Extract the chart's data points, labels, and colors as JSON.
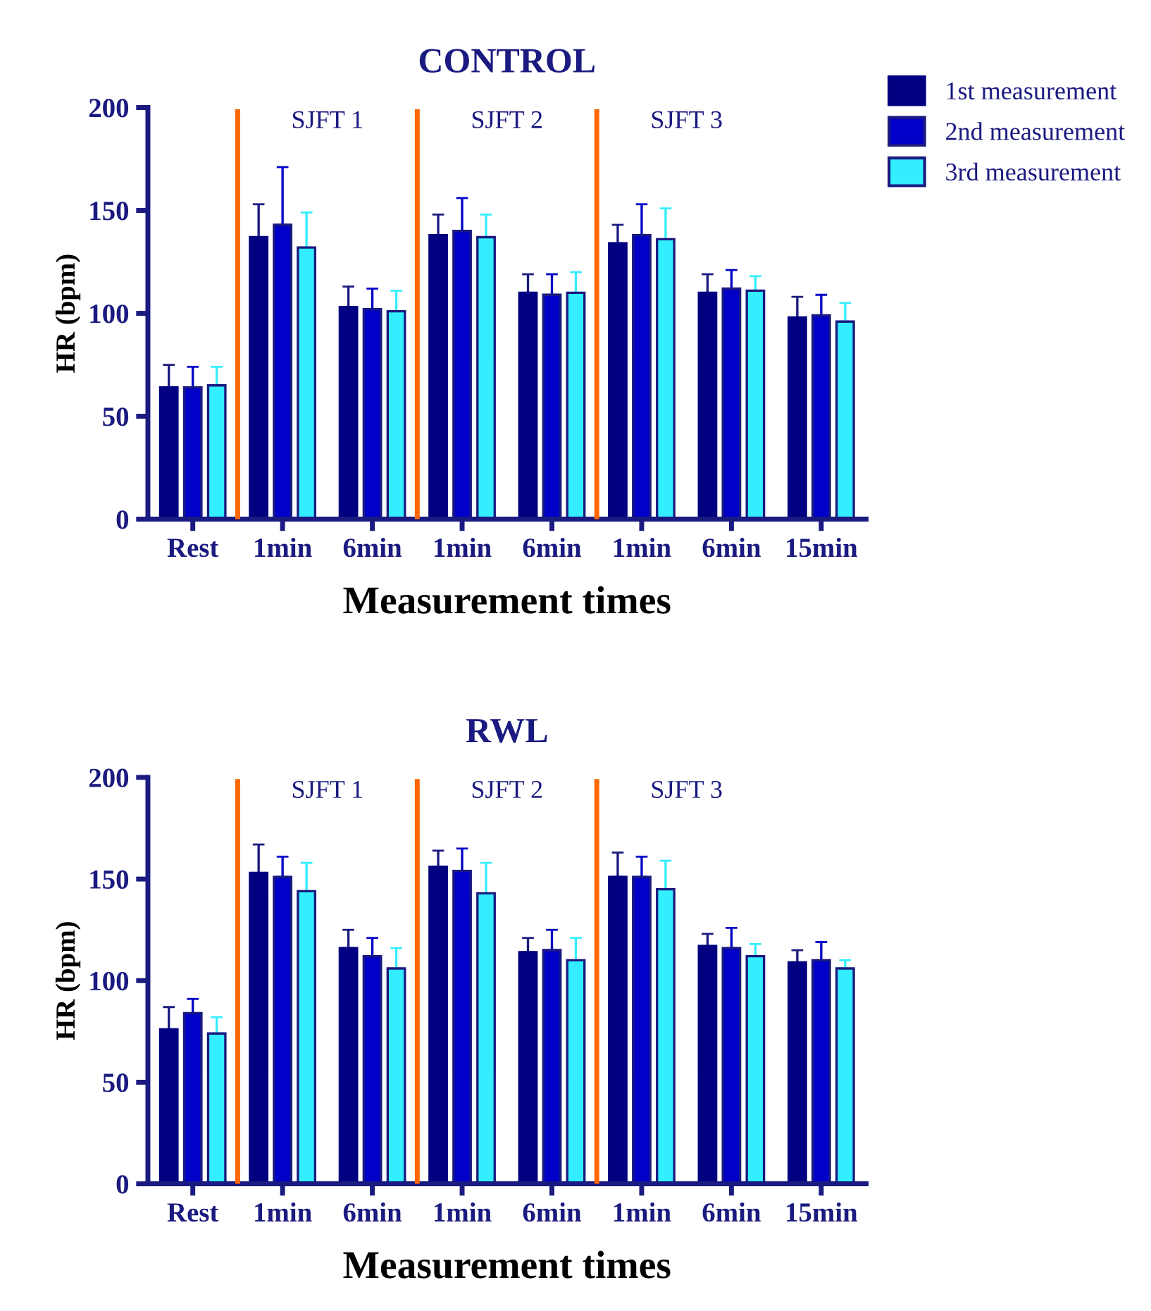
{
  "chart_data": [
    {
      "type": "bar",
      "title": "CONTROL",
      "xlabel": "Measurement times",
      "ylabel": "HR (bpm)",
      "categories": [
        "Rest",
        "1min",
        "6min",
        "1min",
        "6min",
        "1min",
        "6min",
        "15min"
      ],
      "ylim": [
        0,
        200
      ],
      "yticks": [
        0,
        50,
        100,
        150,
        200
      ],
      "grid": false,
      "legend": "top right",
      "series": [
        {
          "name": "1st measurement",
          "color": "#000080",
          "values": [
            64,
            137,
            103,
            138,
            110,
            134,
            110,
            98
          ],
          "errors": [
            [
              64,
              75
            ],
            [
              137,
              153
            ],
            [
              103,
              113
            ],
            [
              138,
              148
            ],
            [
              110,
              119
            ],
            [
              134,
              143
            ],
            [
              110,
              119
            ],
            [
              98,
              108
            ]
          ]
        },
        {
          "name": "2nd measurement",
          "color": "#0000c8",
          "values": [
            64,
            143,
            102,
            140,
            109,
            138,
            112,
            99
          ],
          "errors": [
            [
              64,
              74
            ],
            [
              143,
              171
            ],
            [
              102,
              112
            ],
            [
              140,
              156
            ],
            [
              109,
              119
            ],
            [
              138,
              153
            ],
            [
              112,
              121
            ],
            [
              99,
              109
            ]
          ]
        },
        {
          "name": "3rd measurement",
          "color": "#33eeff",
          "values": [
            65,
            132,
            101,
            137,
            110,
            136,
            111,
            96
          ],
          "errors": [
            [
              65,
              74
            ],
            [
              132,
              149
            ],
            [
              101,
              111
            ],
            [
              137,
              148
            ],
            [
              110,
              120
            ],
            [
              136,
              151
            ],
            [
              111,
              118
            ],
            [
              96,
              105
            ]
          ]
        }
      ],
      "annotations": [
        "SJFT 1",
        "SJFT 2",
        "SJFT 3"
      ]
    },
    {
      "type": "bar",
      "title": "RWL",
      "xlabel": "Measurement times",
      "ylabel": "HR (bpm)",
      "categories": [
        "Rest",
        "1min",
        "6min",
        "1min",
        "6min",
        "1min",
        "6min",
        "15min"
      ],
      "ylim": [
        0,
        200
      ],
      "yticks": [
        0,
        50,
        100,
        150,
        200
      ],
      "grid": false,
      "series": [
        {
          "color": "#000080",
          "values": [
            76,
            153,
            116,
            156,
            114,
            151,
            117,
            109
          ],
          "errors": [
            [
              76,
              87
            ],
            [
              153,
              167
            ],
            [
              116,
              125
            ],
            [
              156,
              164
            ],
            [
              114,
              121
            ],
            [
              151,
              163
            ],
            [
              117,
              123
            ],
            [
              109,
              115
            ]
          ]
        },
        {
          "color": "#0000c8",
          "values": [
            84,
            151,
            112,
            154,
            115,
            151,
            116,
            110
          ],
          "errors": [
            [
              84,
              91
            ],
            [
              151,
              161
            ],
            [
              112,
              121
            ],
            [
              154,
              165
            ],
            [
              115,
              125
            ],
            [
              151,
              161
            ],
            [
              116,
              126
            ],
            [
              110,
              119
            ]
          ]
        },
        {
          "color": "#33eeff",
          "values": [
            74,
            144,
            106,
            143,
            110,
            145,
            112,
            106
          ],
          "errors": [
            [
              74,
              82
            ],
            [
              144,
              158
            ],
            [
              106,
              116
            ],
            [
              143,
              158
            ],
            [
              110,
              121
            ],
            [
              145,
              159
            ],
            [
              112,
              118
            ],
            [
              106,
              110
            ]
          ]
        }
      ],
      "annotations": [
        "SJFT 1",
        "SJFT 2",
        "SJFT 3"
      ]
    }
  ]
}
